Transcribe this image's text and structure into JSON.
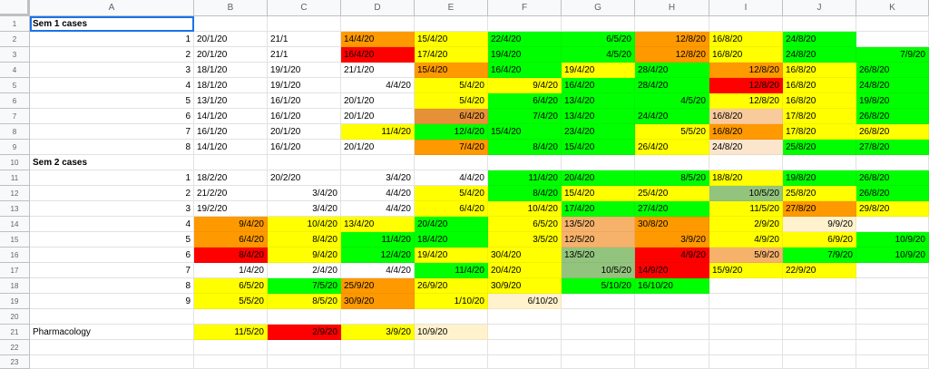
{
  "column_headers": [
    "A",
    "B",
    "C",
    "D",
    "E",
    "F",
    "G",
    "H",
    "I",
    "J",
    "K"
  ],
  "row_headers": [
    "1",
    "2",
    "3",
    "4",
    "5",
    "6",
    "7",
    "8",
    "9",
    "10",
    "11",
    "12",
    "13",
    "14",
    "15",
    "16",
    "17",
    "18",
    "19",
    "20",
    "21",
    "22",
    "23"
  ],
  "colors": {
    "orange": "#ff9900",
    "yellow": "#ffff00",
    "green": "#00ff00",
    "red": "#ff0000",
    "light_orange": "#f9cb9c",
    "pale": "#fce5cd",
    "gold": "#e69138",
    "olive": "#93c47d",
    "orange_light": "#f6b26b",
    "cream": "#fff2cc"
  },
  "rows": [
    [
      "",
      "",
      "",
      "",
      "",
      "",
      "",
      "",
      "",
      "",
      ""
    ],
    [
      {
        "t": "Sem 1 cases",
        "b": true
      },
      "",
      "",
      "",
      "",
      "",
      "",
      "",
      "",
      "",
      ""
    ],
    [
      {
        "t": "1",
        "r": true
      },
      "20/1/20",
      "21/1",
      {
        "t": "14/4/20",
        "bg": "orange"
      },
      {
        "t": "15/4/20",
        "bg": "yellow"
      },
      {
        "t": "22/4/20",
        "bg": "green"
      },
      {
        "t": "6/5/20",
        "bg": "green",
        "r": true
      },
      {
        "t": "12/8/20",
        "bg": "orange",
        "r": true
      },
      {
        "t": "16/8/20",
        "bg": "yellow"
      },
      {
        "t": "24/8/20",
        "bg": "green"
      },
      ""
    ],
    [
      {
        "t": "2",
        "r": true
      },
      "20/1/20",
      "21/1",
      {
        "t": "16/4/20",
        "bg": "red"
      },
      {
        "t": "17/4/20",
        "bg": "yellow"
      },
      {
        "t": "19/4/20",
        "bg": "green"
      },
      {
        "t": "4/5/20",
        "bg": "green",
        "r": true
      },
      {
        "t": "12/8/20",
        "bg": "orange",
        "r": true
      },
      {
        "t": "16/8/20",
        "bg": "yellow"
      },
      {
        "t": "24/8/20",
        "bg": "green"
      },
      {
        "t": "7/9/20",
        "bg": "green",
        "r": true
      }
    ],
    [
      {
        "t": "3",
        "r": true
      },
      "18/1/20",
      "19/1/20",
      "21/1/20",
      {
        "t": "15/4/20",
        "bg": "orange"
      },
      {
        "t": "16/4/20",
        "bg": "green"
      },
      {
        "t": "19/4/20",
        "bg": "yellow"
      },
      {
        "t": "28/4/20",
        "bg": "green"
      },
      {
        "t": "12/8/20",
        "bg": "orange",
        "r": true
      },
      {
        "t": "16/8/20",
        "bg": "yellow"
      },
      {
        "t": "26/8/20",
        "bg": "green"
      }
    ],
    [
      {
        "t": "4",
        "r": true
      },
      "18/1/20",
      "19/1/20",
      {
        "t": "4/4/20",
        "r": true
      },
      {
        "t": "5/4/20",
        "bg": "yellow",
        "r": true
      },
      {
        "t": "9/4/20",
        "bg": "yellow",
        "r": true
      },
      {
        "t": "16/4/20",
        "bg": "green"
      },
      {
        "t": "28/4/20",
        "bg": "green"
      },
      {
        "t": "12/8/20",
        "bg": "red",
        "r": true
      },
      {
        "t": "16/8/20",
        "bg": "yellow"
      },
      {
        "t": "24/8/20",
        "bg": "green"
      }
    ],
    [
      {
        "t": "5",
        "r": true
      },
      "13/1/20",
      "16/1/20",
      "20/1/20",
      {
        "t": "5/4/20",
        "bg": "yellow",
        "r": true
      },
      {
        "t": "6/4/20",
        "bg": "green",
        "r": true
      },
      {
        "t": "13/4/20",
        "bg": "green"
      },
      {
        "t": "4/5/20",
        "bg": "green",
        "r": true
      },
      {
        "t": "12/8/20",
        "bg": "yellow",
        "r": true
      },
      {
        "t": "16/8/20",
        "bg": "yellow"
      },
      {
        "t": "19/8/20",
        "bg": "green"
      }
    ],
    [
      {
        "t": "6",
        "r": true
      },
      "14/1/20",
      "16/1/20",
      "20/1/20",
      {
        "t": "6/4/20",
        "bg": "gold",
        "r": true
      },
      {
        "t": "7/4/20",
        "bg": "green",
        "r": true
      },
      {
        "t": "13/4/20",
        "bg": "green"
      },
      {
        "t": "24/4/20",
        "bg": "green"
      },
      {
        "t": "16/8/20",
        "bg": "light_orange"
      },
      {
        "t": "17/8/20",
        "bg": "yellow"
      },
      {
        "t": "26/8/20",
        "bg": "green"
      }
    ],
    [
      {
        "t": "7",
        "r": true
      },
      "16/1/20",
      "20/1/20",
      {
        "t": "11/4/20",
        "bg": "yellow",
        "r": true
      },
      {
        "t": "12/4/20",
        "bg": "green",
        "r": true
      },
      {
        "t": "15/4/20",
        "bg": "green"
      },
      {
        "t": "23/4/20",
        "bg": "green"
      },
      {
        "t": "5/5/20",
        "bg": "yellow",
        "r": true
      },
      {
        "t": "16/8/20",
        "bg": "orange"
      },
      {
        "t": "17/8/20",
        "bg": "yellow"
      },
      {
        "t": "26/8/20",
        "bg": "yellow"
      }
    ],
    [
      {
        "t": "8",
        "r": true
      },
      "14/1/20",
      "16/1/20",
      "20/1/20",
      {
        "t": "7/4/20",
        "bg": "orange",
        "r": true
      },
      {
        "t": "8/4/20",
        "bg": "green",
        "r": true
      },
      {
        "t": "15/4/20",
        "bg": "green"
      },
      {
        "t": "26/4/20",
        "bg": "yellow"
      },
      {
        "t": "24/8/20",
        "bg": "pale"
      },
      {
        "t": "25/8/20",
        "bg": "green"
      },
      {
        "t": "27/8/20",
        "bg": "green"
      }
    ],
    [
      {
        "t": "Sem 2 cases",
        "b": true
      },
      "",
      "",
      "",
      "",
      "",
      "",
      "",
      "",
      "",
      ""
    ],
    [
      {
        "t": "1",
        "r": true
      },
      "18/2/20",
      "20/2/20",
      {
        "t": "3/4/20",
        "r": true
      },
      {
        "t": "4/4/20",
        "r": true
      },
      {
        "t": "11/4/20",
        "bg": "green",
        "r": true
      },
      {
        "t": "20/4/20",
        "bg": "green"
      },
      {
        "t": "8/5/20",
        "bg": "green",
        "r": true
      },
      {
        "t": "18/8/20",
        "bg": "yellow"
      },
      {
        "t": "19/8/20",
        "bg": "green"
      },
      {
        "t": "26/8/20",
        "bg": "green"
      }
    ],
    [
      {
        "t": "2",
        "r": true
      },
      "21/2/20",
      {
        "t": "3/4/20",
        "r": true
      },
      {
        "t": "4/4/20",
        "r": true
      },
      {
        "t": "5/4/20",
        "bg": "yellow",
        "r": true
      },
      {
        "t": "8/4/20",
        "bg": "green",
        "r": true
      },
      {
        "t": "15/4/20",
        "bg": "yellow"
      },
      {
        "t": "25/4/20",
        "bg": "yellow"
      },
      {
        "t": "10/5/20",
        "bg": "olive",
        "r": true
      },
      {
        "t": "25/8/20",
        "bg": "yellow"
      },
      {
        "t": "26/8/20",
        "bg": "green"
      }
    ],
    [
      {
        "t": "3",
        "r": true
      },
      "19/2/20",
      {
        "t": "3/4/20",
        "r": true
      },
      {
        "t": "4/4/20",
        "r": true
      },
      {
        "t": "6/4/20",
        "bg": "yellow",
        "r": true
      },
      {
        "t": "10/4/20",
        "bg": "yellow",
        "r": true
      },
      {
        "t": "17/4/20",
        "bg": "green"
      },
      {
        "t": "27/4/20",
        "bg": "green"
      },
      {
        "t": "11/5/20",
        "bg": "yellow",
        "r": true
      },
      {
        "t": "27/8/20",
        "bg": "orange"
      },
      {
        "t": "29/8/20",
        "bg": "yellow"
      }
    ],
    [
      {
        "t": "4",
        "r": true
      },
      {
        "t": "9/4/20",
        "bg": "orange",
        "r": true
      },
      {
        "t": "10/4/20",
        "bg": "yellow",
        "r": true
      },
      {
        "t": "13/4/20",
        "bg": "yellow"
      },
      {
        "t": "20/4/20",
        "bg": "green"
      },
      {
        "t": "6/5/20",
        "bg": "yellow",
        "r": true
      },
      {
        "t": "13/5/20",
        "bg": "orange_light"
      },
      {
        "t": "30/8/20",
        "bg": "orange"
      },
      {
        "t": "2/9/20",
        "bg": "yellow",
        "r": true
      },
      {
        "t": "9/9/20",
        "bg": "cream",
        "r": true
      },
      ""
    ],
    [
      {
        "t": "5",
        "r": true
      },
      {
        "t": "6/4/20",
        "bg": "orange",
        "r": true
      },
      {
        "t": "8/4/20",
        "bg": "yellow",
        "r": true
      },
      {
        "t": "11/4/20",
        "bg": "green",
        "r": true
      },
      {
        "t": "18/4/20",
        "bg": "green"
      },
      {
        "t": "3/5/20",
        "bg": "yellow",
        "r": true
      },
      {
        "t": "12/5/20",
        "bg": "orange_light"
      },
      {
        "t": "3/9/20",
        "bg": "orange",
        "r": true
      },
      {
        "t": "4/9/20",
        "bg": "yellow",
        "r": true
      },
      {
        "t": "6/9/20",
        "bg": "yellow",
        "r": true
      },
      {
        "t": "10/9/20",
        "bg": "green",
        "r": true
      }
    ],
    [
      {
        "t": "6",
        "r": true
      },
      {
        "t": "8/4/20",
        "bg": "red",
        "r": true
      },
      {
        "t": "9/4/20",
        "bg": "yellow",
        "r": true
      },
      {
        "t": "12/4/20",
        "bg": "green",
        "r": true
      },
      {
        "t": "19/4/20",
        "bg": "yellow"
      },
      {
        "t": "30/4/20",
        "bg": "yellow"
      },
      {
        "t": "13/5/20",
        "bg": "olive"
      },
      {
        "t": "4/9/20",
        "bg": "red",
        "r": true
      },
      {
        "t": "5/9/20",
        "bg": "orange_light",
        "r": true
      },
      {
        "t": "7/9/20",
        "bg": "green",
        "r": true
      },
      {
        "t": "10/9/20",
        "bg": "green",
        "r": true
      }
    ],
    [
      {
        "t": "7",
        "r": true
      },
      {
        "t": "1/4/20",
        "r": true
      },
      {
        "t": "2/4/20",
        "r": true
      },
      {
        "t": "4/4/20",
        "r": true
      },
      {
        "t": "11/4/20",
        "bg": "green",
        "r": true
      },
      {
        "t": "20/4/20",
        "bg": "yellow"
      },
      {
        "t": "10/5/20",
        "bg": "olive",
        "r": true
      },
      {
        "t": "14/9/20",
        "bg": "red"
      },
      {
        "t": "15/9/20",
        "bg": "yellow"
      },
      {
        "t": "22/9/20",
        "bg": "yellow"
      },
      ""
    ],
    [
      {
        "t": "8",
        "r": true
      },
      {
        "t": "6/5/20",
        "bg": "yellow",
        "r": true
      },
      {
        "t": "7/5/20",
        "bg": "green",
        "r": true
      },
      {
        "t": "25/9/20",
        "bg": "orange"
      },
      {
        "t": "26/9/20",
        "bg": "yellow"
      },
      {
        "t": "30/9/20",
        "bg": "yellow"
      },
      {
        "t": "5/10/20",
        "bg": "green",
        "r": true
      },
      {
        "t": "16/10/20",
        "bg": "green"
      },
      "",
      "",
      ""
    ],
    [
      {
        "t": "9",
        "r": true
      },
      {
        "t": "5/5/20",
        "bg": "yellow",
        "r": true
      },
      {
        "t": "8/5/20",
        "bg": "yellow",
        "r": true
      },
      {
        "t": "30/9/20",
        "bg": "orange"
      },
      {
        "t": "1/10/20",
        "bg": "yellow",
        "r": true
      },
      {
        "t": "6/10/20",
        "bg": "cream",
        "r": true
      },
      "",
      "",
      "",
      "",
      ""
    ],
    [
      "",
      "",
      "",
      "",
      "",
      "",
      "",
      "",
      "",
      "",
      ""
    ],
    [
      "Pharmacology",
      {
        "t": "11/5/20",
        "bg": "yellow",
        "r": true
      },
      {
        "t": "2/9/20",
        "bg": "red",
        "r": true
      },
      {
        "t": "3/9/20",
        "bg": "yellow",
        "r": true
      },
      {
        "t": "10/9/20",
        "bg": "cream"
      },
      "",
      "",
      "",
      "",
      "",
      ""
    ],
    [
      "",
      "",
      "",
      "",
      "",
      "",
      "",
      "",
      "",
      "",
      ""
    ],
    [
      "",
      "",
      "",
      "",
      "",
      "",
      "",
      "",
      "",
      "",
      ""
    ]
  ]
}
